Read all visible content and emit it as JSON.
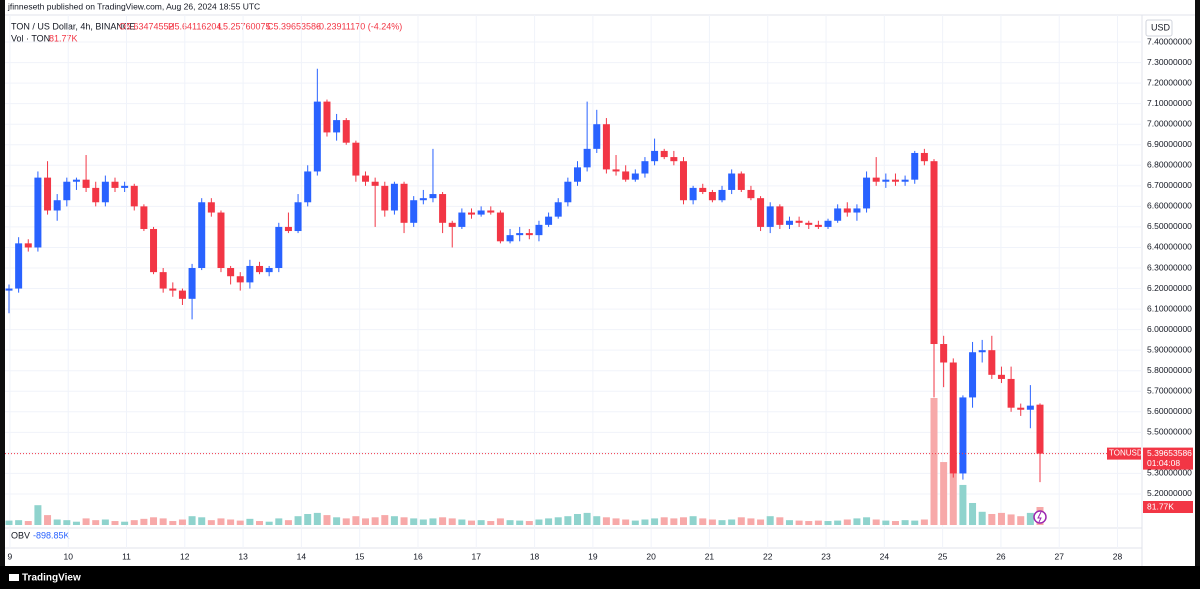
{
  "header": {
    "published": "jfinneseth published on TradingView.com, Aug 26, 2024 18:55 UTC",
    "symbol": "TON / US Dollar, 4h, BINANCE",
    "open": "O5.63474552",
    "high": "H5.64116204",
    "low": "L5.25760075",
    "close": "C5.39653586",
    "change": "-0.23911170 (-4.24%)",
    "vol_name": "Vol · TON",
    "vol_value": "81.77K",
    "obv_name": "OBV",
    "obv_value": "-898.85K",
    "currency": "USD",
    "ticker": "TONUSD",
    "countdown": "01:04:08",
    "brand": "TradingView"
  },
  "chart_data": {
    "type": "candlestick",
    "up_color": "#2962ff",
    "down_color": "#f23645",
    "vol_up_color": "#8fd3cd",
    "vol_down_color": "#f7a9a9",
    "grid": true,
    "open": [
      6.19,
      6.2,
      6.42,
      6.4,
      6.74,
      6.58,
      6.63,
      6.72,
      6.73,
      6.69,
      6.62,
      6.72,
      6.69,
      6.7,
      6.6,
      6.49,
      6.28,
      6.2,
      6.19,
      6.15,
      6.3,
      6.62,
      6.57,
      6.3,
      6.26,
      6.23,
      6.31,
      6.28,
      6.3,
      6.5,
      6.48,
      6.62,
      6.77,
      7.11,
      6.96,
      7.02,
      6.91,
      6.75,
      6.72,
      6.7,
      6.58,
      6.71,
      6.52,
      6.63,
      6.64,
      6.66,
      6.52,
      6.5,
      6.57,
      6.56,
      6.58,
      6.57,
      6.43,
      6.46,
      6.47,
      6.46,
      6.51,
      6.55,
      6.62,
      6.72,
      6.79,
      6.88,
      7.0,
      6.78,
      6.77,
      6.73,
      6.76,
      6.82,
      6.87,
      6.84,
      6.82,
      6.63,
      6.69,
      6.67,
      6.63,
      6.68,
      6.76,
      6.68,
      6.64,
      6.5,
      6.6,
      6.51,
      6.53,
      6.52,
      6.51,
      6.5,
      6.53,
      6.59,
      6.57,
      6.59,
      6.74,
      6.72,
      6.73,
      6.72,
      6.73,
      6.86,
      6.82,
      5.93,
      5.84,
      5.3,
      5.67,
      5.89,
      5.9,
      5.78,
      5.76,
      5.62,
      5.61,
      5.63474552
    ],
    "high": [
      6.22,
      6.45,
      6.44,
      6.77,
      6.82,
      6.66,
      6.74,
      6.74,
      6.85,
      6.72,
      6.75,
      6.74,
      6.72,
      6.71,
      6.61,
      6.5,
      6.3,
      6.23,
      6.2,
      6.32,
      6.64,
      6.64,
      6.58,
      6.31,
      6.28,
      6.34,
      6.33,
      6.31,
      6.52,
      6.57,
      6.66,
      6.8,
      7.27,
      7.12,
      7.05,
      7.03,
      6.92,
      6.77,
      6.74,
      6.72,
      6.72,
      6.72,
      6.65,
      6.68,
      6.88,
      6.67,
      6.53,
      6.59,
      6.59,
      6.6,
      6.6,
      6.58,
      6.49,
      6.5,
      6.49,
      6.53,
      6.57,
      6.64,
      6.74,
      6.82,
      7.11,
      7.07,
      7.03,
      6.85,
      6.8,
      6.78,
      6.84,
      6.93,
      6.88,
      6.87,
      6.84,
      6.7,
      6.71,
      6.68,
      6.7,
      6.78,
      6.77,
      6.7,
      6.65,
      6.62,
      6.61,
      6.55,
      6.55,
      6.53,
      6.53,
      6.54,
      6.61,
      6.62,
      6.61,
      6.77,
      6.84,
      6.76,
      6.76,
      6.75,
      6.87,
      6.88,
      6.83,
      5.97,
      5.86,
      5.68,
      5.94,
      5.95,
      5.97,
      5.82,
      5.82,
      5.64,
      5.73,
      5.64116204
    ],
    "low": [
      6.08,
      6.18,
      6.38,
      6.38,
      6.56,
      6.53,
      6.6,
      6.68,
      6.67,
      6.6,
      6.6,
      6.67,
      6.67,
      6.58,
      6.48,
      6.27,
      6.18,
      6.16,
      6.12,
      6.05,
      6.29,
      6.55,
      6.28,
      6.22,
      6.19,
      6.2,
      6.27,
      6.26,
      6.28,
      6.47,
      6.47,
      6.6,
      6.75,
      6.94,
      6.92,
      6.9,
      6.72,
      6.7,
      6.5,
      6.55,
      6.56,
      6.47,
      6.5,
      6.61,
      6.62,
      6.47,
      6.4,
      6.49,
      6.54,
      6.55,
      6.56,
      6.42,
      6.42,
      6.43,
      6.44,
      6.43,
      6.5,
      6.54,
      6.6,
      6.7,
      6.77,
      6.86,
      6.76,
      6.75,
      6.72,
      6.72,
      6.74,
      6.8,
      6.83,
      6.8,
      6.61,
      6.61,
      6.66,
      6.62,
      6.62,
      6.66,
      6.67,
      6.63,
      6.48,
      6.47,
      6.49,
      6.49,
      6.5,
      6.49,
      6.49,
      6.49,
      6.52,
      6.55,
      6.53,
      6.57,
      6.7,
      6.69,
      6.7,
      6.7,
      6.71,
      6.8,
      5.67,
      5.72,
      5.28,
      5.27,
      5.62,
      5.84,
      5.76,
      5.74,
      5.6,
      5.58,
      5.52,
      5.25760075
    ],
    "close": [
      6.2,
      6.42,
      6.4,
      6.74,
      6.58,
      6.63,
      6.72,
      6.73,
      6.69,
      6.62,
      6.72,
      6.69,
      6.7,
      6.6,
      6.49,
      6.28,
      6.2,
      6.19,
      6.15,
      6.3,
      6.62,
      6.57,
      6.3,
      6.26,
      6.23,
      6.31,
      6.28,
      6.3,
      6.5,
      6.48,
      6.62,
      6.77,
      7.11,
      6.96,
      7.02,
      6.91,
      6.75,
      6.72,
      6.7,
      6.58,
      6.71,
      6.52,
      6.63,
      6.64,
      6.66,
      6.52,
      6.5,
      6.57,
      6.56,
      6.58,
      6.57,
      6.43,
      6.46,
      6.47,
      6.46,
      6.51,
      6.55,
      6.62,
      6.72,
      6.79,
      6.88,
      7.0,
      6.78,
      6.77,
      6.73,
      6.76,
      6.82,
      6.87,
      6.84,
      6.82,
      6.63,
      6.69,
      6.67,
      6.63,
      6.68,
      6.76,
      6.68,
      6.64,
      6.5,
      6.6,
      6.51,
      6.53,
      6.52,
      6.51,
      6.5,
      6.53,
      6.59,
      6.57,
      6.59,
      6.74,
      6.72,
      6.73,
      6.72,
      6.73,
      6.86,
      6.82,
      5.93,
      5.84,
      5.3,
      5.67,
      5.89,
      5.9,
      5.78,
      5.76,
      5.62,
      5.61,
      5.63,
      5.39653586
    ],
    "volume": [
      20000,
      22000,
      18000,
      90000,
      45000,
      25000,
      22000,
      15000,
      30000,
      22000,
      25000,
      18000,
      15000,
      22000,
      28000,
      35000,
      30000,
      18000,
      25000,
      40000,
      35000,
      22000,
      30000,
      25000,
      20000,
      28000,
      18000,
      15000,
      30000,
      22000,
      40000,
      50000,
      55000,
      45000,
      35000,
      30000,
      40000,
      30000,
      35000,
      45000,
      40000,
      35000,
      30000,
      25000,
      30000,
      35000,
      30000,
      25000,
      20000,
      22000,
      18000,
      30000,
      22000,
      20000,
      18000,
      25000,
      30000,
      35000,
      40000,
      50000,
      55000,
      40000,
      35000,
      30000,
      25000,
      20000,
      25000,
      30000,
      35000,
      30000,
      35000,
      40000,
      30000,
      25000,
      22000,
      25000,
      35000,
      30000,
      25000,
      40000,
      35000,
      22000,
      20000,
      18000,
      20000,
      18000,
      20000,
      25000,
      30000,
      35000,
      25000,
      20000,
      18000,
      22000,
      20000,
      25000,
      577000,
      286000,
      318000,
      182000,
      100000,
      60000,
      50000,
      55000,
      48000,
      40000,
      55000,
      81770
    ],
    "ylim": [
      5.049,
      7.517
    ],
    "yticks": [
      {
        "value": 7.4,
        "label": "7.40000000"
      },
      {
        "value": 7.3,
        "label": "7.30000000"
      },
      {
        "value": 7.2,
        "label": "7.20000000"
      },
      {
        "value": 7.1,
        "label": "7.10000000"
      },
      {
        "value": 7.0,
        "label": "7.00000000"
      },
      {
        "value": 6.9,
        "label": "6.90000000"
      },
      {
        "value": 6.8,
        "label": "6.80000000"
      },
      {
        "value": 6.7,
        "label": "6.70000000"
      },
      {
        "value": 6.6,
        "label": "6.60000000"
      },
      {
        "value": 6.5,
        "label": "6.50000000"
      },
      {
        "value": 6.4,
        "label": "6.40000000"
      },
      {
        "value": 6.3,
        "label": "6.30000000"
      },
      {
        "value": 6.2,
        "label": "6.20000000"
      },
      {
        "value": 6.1,
        "label": "6.10000000"
      },
      {
        "value": 6.0,
        "label": "6.00000000"
      },
      {
        "value": 5.9,
        "label": "5.90000000"
      },
      {
        "value": 5.8,
        "label": "5.80000000"
      },
      {
        "value": 5.7,
        "label": "5.70000000"
      },
      {
        "value": 5.6,
        "label": "5.60000000"
      },
      {
        "value": 5.5,
        "label": "5.50000000"
      },
      {
        "value": 5.4,
        "label": "5.40000000"
      },
      {
        "value": 5.3,
        "label": "5.30000000"
      },
      {
        "value": 5.2,
        "label": "5.20000000"
      }
    ],
    "xlim": [
      8.83,
      28.42
    ],
    "xticks": [
      9,
      10,
      11,
      12,
      13,
      14,
      15,
      16,
      17,
      18,
      19,
      20,
      21,
      22,
      23,
      24,
      25,
      26,
      27,
      28
    ]
  }
}
